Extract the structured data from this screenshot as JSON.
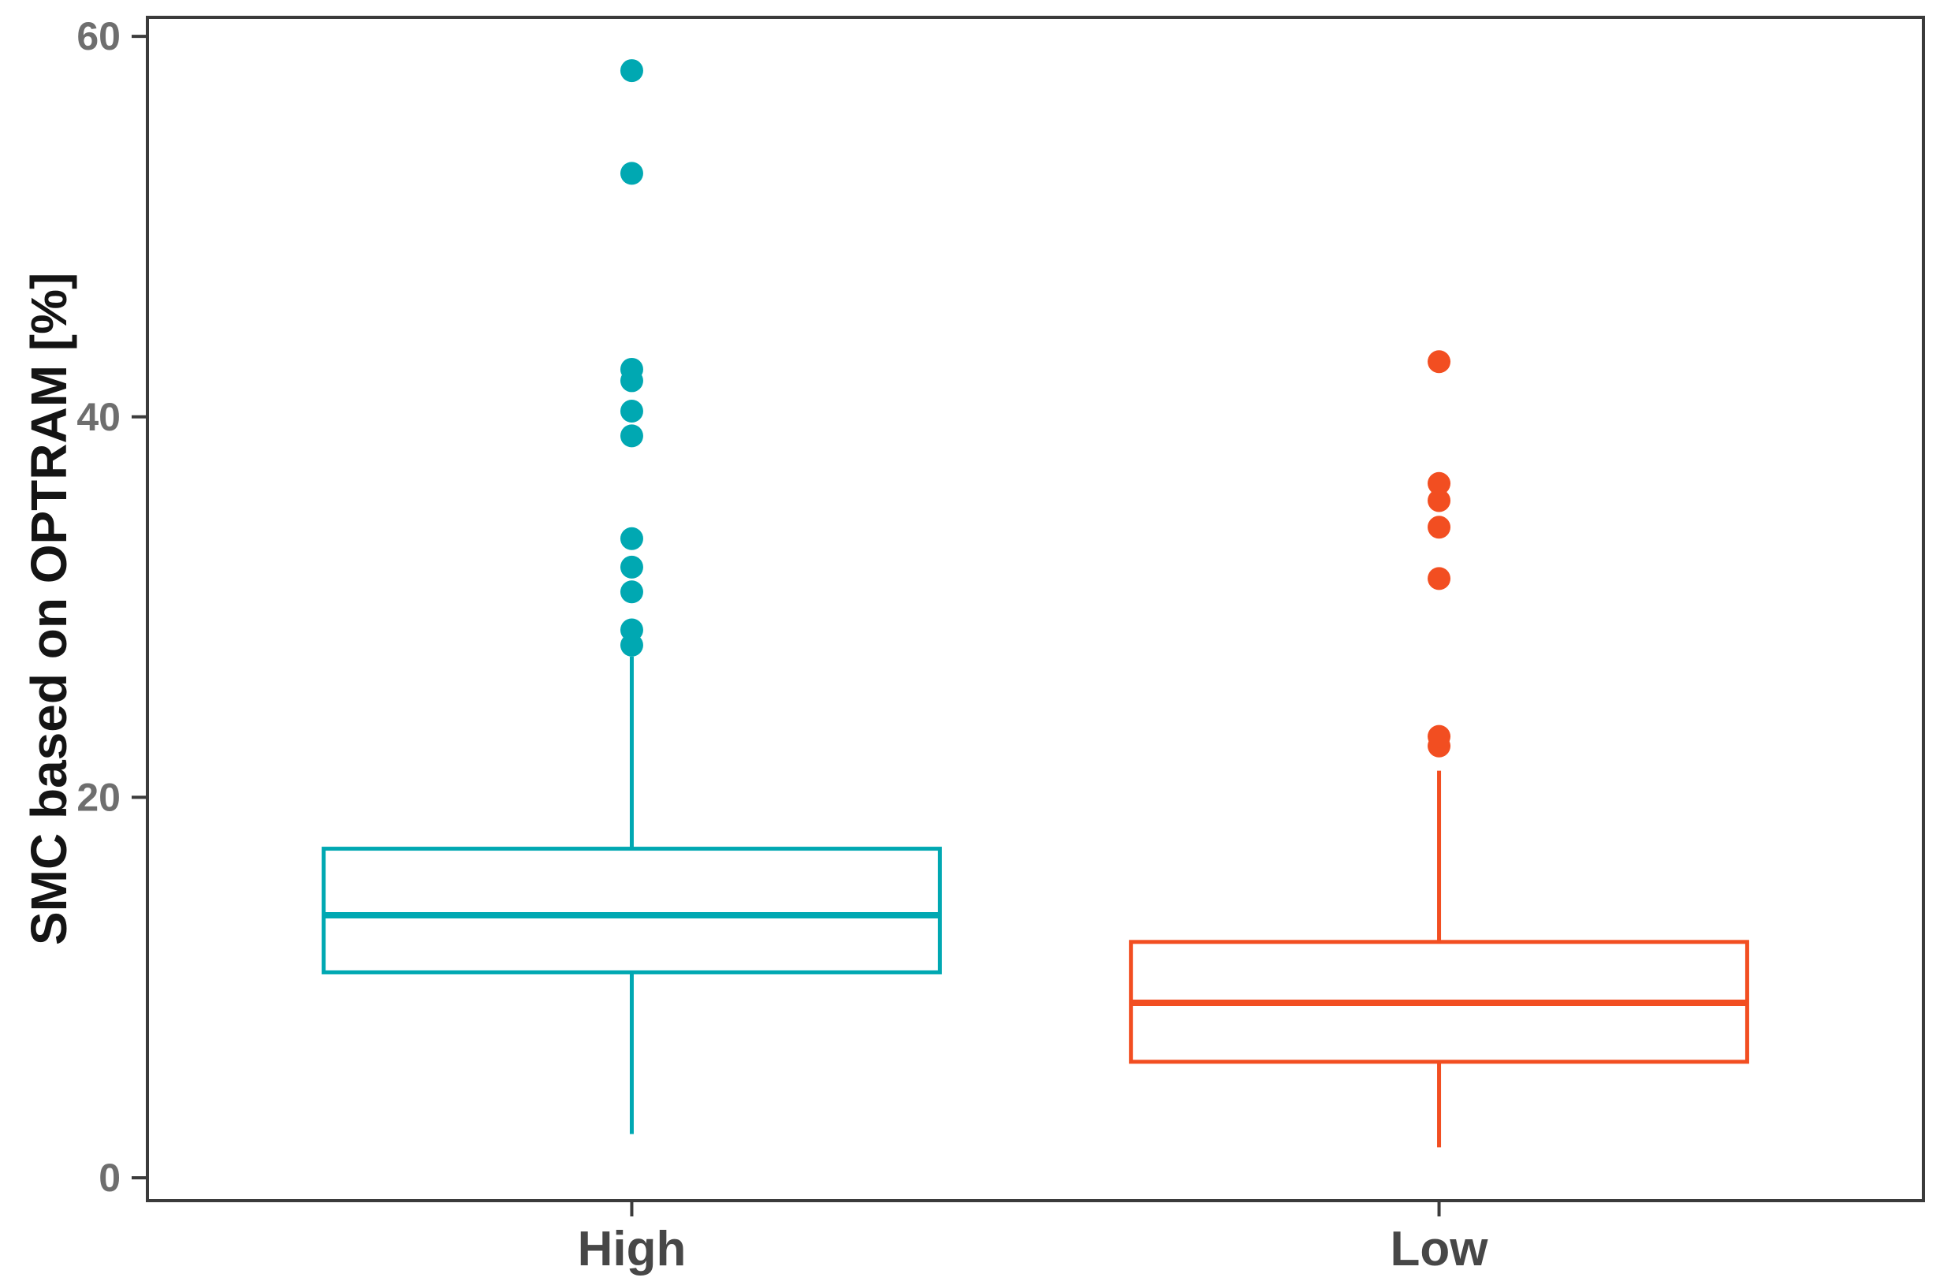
{
  "figure": {
    "background": "#ffffff"
  },
  "colors": {
    "high": "#00A8B2",
    "low": "#F24E21",
    "panel_border": "#3B3B3B",
    "tick_label": "#6E6E6E",
    "category_label": "#474747",
    "axis_title": "#141414"
  },
  "chart_data": {
    "type": "boxplot",
    "title": "",
    "xlabel": "",
    "ylabel": "SMC based on OPTRAM [%]",
    "categories": [
      "High",
      "Low"
    ],
    "yticks": [
      0,
      20,
      40,
      60
    ],
    "ylim": [
      -1.2,
      61
    ],
    "grid": false,
    "panel_border": true,
    "whisker_caps": false,
    "legend": "none",
    "series": [
      {
        "name": "High",
        "color": "#00A8B2",
        "whisker_low": 2.3,
        "q1": 10.8,
        "median": 13.8,
        "q3": 17.3,
        "whisker_high": 27.4,
        "outliers": [
          28.0,
          28.8,
          30.8,
          32.1,
          33.6,
          39.0,
          40.3,
          41.9,
          42.5,
          52.8,
          58.2
        ]
      },
      {
        "name": "Low",
        "color": "#F24E21",
        "whisker_low": 1.6,
        "q1": 6.1,
        "median": 9.2,
        "q3": 12.4,
        "whisker_high": 21.4,
        "outliers": [
          22.7,
          23.2,
          31.5,
          34.2,
          35.6,
          36.5,
          42.9
        ]
      }
    ]
  }
}
